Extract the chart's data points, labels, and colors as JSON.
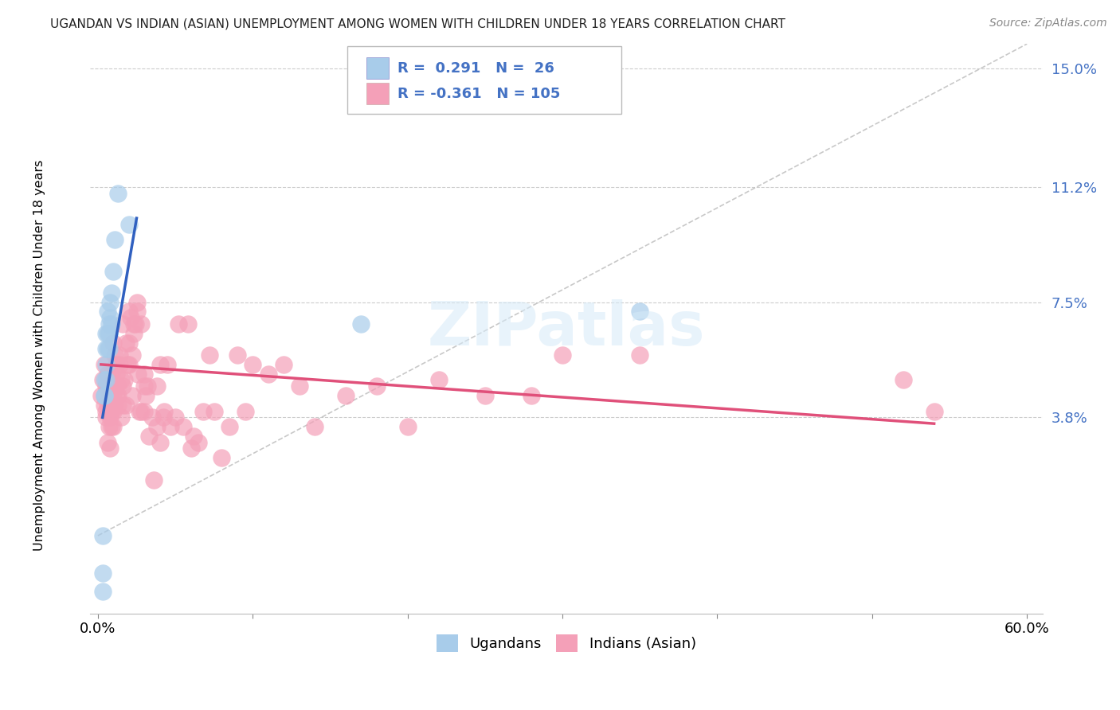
{
  "title": "UGANDAN VS INDIAN (ASIAN) UNEMPLOYMENT AMONG WOMEN WITH CHILDREN UNDER 18 YEARS CORRELATION CHART",
  "source": "Source: ZipAtlas.com",
  "ylabel": "Unemployment Among Women with Children Under 18 years",
  "xmin": 0.0,
  "xmax": 0.6,
  "ymin": -0.025,
  "ymax": 0.158,
  "yticks": [
    0.038,
    0.075,
    0.112,
    0.15
  ],
  "ytick_labels": [
    "3.8%",
    "7.5%",
    "11.2%",
    "15.0%"
  ],
  "ugandan_color": "#A8CCEA",
  "indian_color": "#F4A0B8",
  "blue_line_color": "#3060C0",
  "pink_line_color": "#E0507A",
  "diagonal_color": "#BBBBBB",
  "ugandan_x": [
    0.003,
    0.003,
    0.003,
    0.004,
    0.004,
    0.004,
    0.005,
    0.005,
    0.005,
    0.005,
    0.006,
    0.006,
    0.006,
    0.007,
    0.007,
    0.007,
    0.008,
    0.008,
    0.009,
    0.009,
    0.01,
    0.011,
    0.013,
    0.02,
    0.17,
    0.35
  ],
  "ugandan_y": [
    0.0,
    -0.012,
    -0.018,
    0.045,
    0.045,
    0.05,
    0.05,
    0.055,
    0.06,
    0.065,
    0.06,
    0.065,
    0.072,
    0.06,
    0.065,
    0.068,
    0.07,
    0.075,
    0.068,
    0.078,
    0.085,
    0.095,
    0.11,
    0.1,
    0.068,
    0.072
  ],
  "indian_x": [
    0.002,
    0.003,
    0.004,
    0.004,
    0.005,
    0.005,
    0.005,
    0.006,
    0.006,
    0.006,
    0.006,
    0.007,
    0.007,
    0.007,
    0.008,
    0.008,
    0.008,
    0.008,
    0.009,
    0.009,
    0.009,
    0.01,
    0.01,
    0.01,
    0.01,
    0.011,
    0.011,
    0.011,
    0.012,
    0.012,
    0.012,
    0.012,
    0.013,
    0.013,
    0.013,
    0.014,
    0.014,
    0.015,
    0.015,
    0.016,
    0.016,
    0.016,
    0.017,
    0.018,
    0.018,
    0.019,
    0.02,
    0.02,
    0.02,
    0.021,
    0.022,
    0.022,
    0.023,
    0.023,
    0.024,
    0.025,
    0.025,
    0.026,
    0.027,
    0.028,
    0.028,
    0.03,
    0.03,
    0.03,
    0.031,
    0.032,
    0.033,
    0.035,
    0.036,
    0.038,
    0.038,
    0.04,
    0.04,
    0.042,
    0.043,
    0.045,
    0.047,
    0.05,
    0.052,
    0.055,
    0.058,
    0.06,
    0.062,
    0.065,
    0.068,
    0.072,
    0.075,
    0.08,
    0.085,
    0.09,
    0.095,
    0.1,
    0.11,
    0.12,
    0.13,
    0.14,
    0.16,
    0.18,
    0.2,
    0.22,
    0.25,
    0.28,
    0.3,
    0.35,
    0.52,
    0.54
  ],
  "indian_y": [
    0.045,
    0.05,
    0.055,
    0.042,
    0.04,
    0.048,
    0.038,
    0.048,
    0.052,
    0.042,
    0.03,
    0.045,
    0.042,
    0.035,
    0.042,
    0.04,
    0.028,
    0.038,
    0.052,
    0.04,
    0.035,
    0.062,
    0.045,
    0.04,
    0.035,
    0.058,
    0.048,
    0.042,
    0.052,
    0.055,
    0.048,
    0.045,
    0.048,
    0.042,
    0.045,
    0.058,
    0.055,
    0.05,
    0.038,
    0.068,
    0.048,
    0.042,
    0.05,
    0.062,
    0.042,
    0.055,
    0.072,
    0.062,
    0.055,
    0.07,
    0.058,
    0.045,
    0.068,
    0.065,
    0.068,
    0.072,
    0.075,
    0.052,
    0.04,
    0.068,
    0.04,
    0.048,
    0.052,
    0.04,
    0.045,
    0.048,
    0.032,
    0.038,
    0.018,
    0.048,
    0.035,
    0.055,
    0.03,
    0.038,
    0.04,
    0.055,
    0.035,
    0.038,
    0.068,
    0.035,
    0.068,
    0.028,
    0.032,
    0.03,
    0.04,
    0.058,
    0.04,
    0.025,
    0.035,
    0.058,
    0.04,
    0.055,
    0.052,
    0.055,
    0.048,
    0.035,
    0.045,
    0.048,
    0.035,
    0.05,
    0.045,
    0.045,
    0.058,
    0.058,
    0.05,
    0.04
  ],
  "blue_line_x0": 0.003,
  "blue_line_x1": 0.025,
  "blue_line_y0": 0.038,
  "blue_line_y1": 0.102,
  "pink_line_x0": 0.002,
  "pink_line_x1": 0.54,
  "pink_line_y0": 0.055,
  "pink_line_y1": 0.036
}
